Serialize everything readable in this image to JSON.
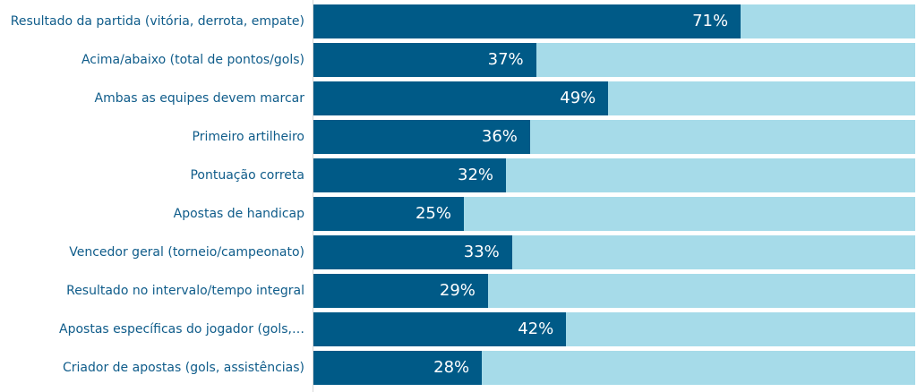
{
  "chart_data": {
    "type": "bar",
    "orientation": "horizontal",
    "categories": [
      "Resultado da partida (vitória, derrota, empate)",
      "Acima/abaixo (total de pontos/gols)",
      "Ambas as equipes devem marcar",
      "Primeiro artilheiro",
      "Pontuação correta",
      "Apostas de handicap",
      "Vencedor geral (torneio/campeonato)",
      "Resultado no intervalo/tempo integral",
      "Apostas específicas do jogador (gols,…",
      "Criador de apostas (gols, assistências)"
    ],
    "values": [
      71,
      37,
      49,
      36,
      32,
      25,
      33,
      29,
      42,
      28
    ],
    "value_labels": [
      "71%",
      "37%",
      "49%",
      "36%",
      "32%",
      "25%",
      "33%",
      "29%",
      "42%",
      "28%"
    ],
    "xlim": [
      0,
      100
    ],
    "grid": false,
    "colors": {
      "bar": "#005a87",
      "track": "#a6dbe9",
      "label": "#0f5c8a"
    }
  }
}
